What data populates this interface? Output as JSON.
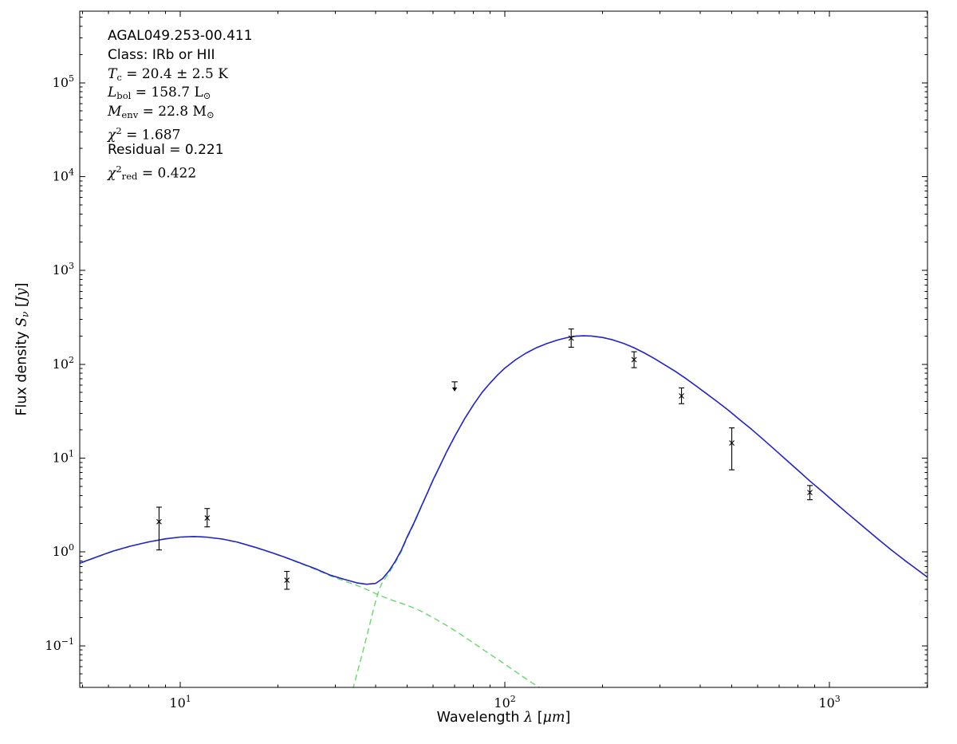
{
  "page": {
    "background": "#ffffff"
  },
  "chart_data": {
    "type": "line",
    "xscale": "log",
    "yscale": "log",
    "xlim": [
      4.9,
      2004
    ],
    "ylim": [
      0.036,
      580000
    ],
    "grid": false,
    "legend": "none",
    "tick_base": "10",
    "x_ticks": [
      {
        "value": 10,
        "exp": "1"
      },
      {
        "value": 100,
        "exp": "2"
      },
      {
        "value": 1000,
        "exp": "3"
      }
    ],
    "y_ticks": [
      {
        "value": 0.1,
        "exp": "−1"
      },
      {
        "value": 1,
        "exp": "0"
      },
      {
        "value": 10,
        "exp": "1"
      },
      {
        "value": 100,
        "exp": "2"
      },
      {
        "value": 1000,
        "exp": "3"
      },
      {
        "value": 10000,
        "exp": "4"
      },
      {
        "value": 100000,
        "exp": "5"
      }
    ],
    "xlabel_segments": [
      {
        "t": "Wavelength ",
        "f": "sans"
      },
      {
        "t": "λ",
        "f": "serif",
        "i": true
      },
      {
        "t": " [",
        "f": "sans"
      },
      {
        "t": "μm",
        "f": "serif",
        "i": true
      },
      {
        "t": "]",
        "f": "sans"
      }
    ],
    "ylabel_segments": [
      {
        "t": "Flux density ",
        "f": "sans"
      },
      {
        "t": "S",
        "f": "serif",
        "i": true
      },
      {
        "t": "ν",
        "f": "serif",
        "i": true,
        "sub": true
      },
      {
        "t": " [",
        "f": "sans"
      },
      {
        "t": "Jy",
        "f": "serif",
        "i": true
      },
      {
        "t": "]",
        "f": "sans"
      }
    ],
    "colors": {
      "model": "#2222cf",
      "components": "#66d966",
      "data": "#000000",
      "frame": "#000000"
    },
    "series": [
      {
        "name": "warm-component",
        "color": "#66d966",
        "dash": true,
        "width": 1.4,
        "points": [
          [
            4.9,
            0.755
          ],
          [
            5.5,
            0.875
          ],
          [
            6.2,
            1.015
          ],
          [
            7,
            1.145
          ],
          [
            8,
            1.275
          ],
          [
            9,
            1.375
          ],
          [
            10,
            1.435
          ],
          [
            11,
            1.455
          ],
          [
            12,
            1.435
          ],
          [
            13.5,
            1.365
          ],
          [
            15,
            1.265
          ],
          [
            17,
            1.115
          ],
          [
            19,
            0.985
          ],
          [
            21,
            0.875
          ],
          [
            23.5,
            0.75
          ],
          [
            26,
            0.655
          ],
          [
            29,
            0.555
          ],
          [
            32,
            0.49
          ],
          [
            35,
            0.44
          ],
          [
            38,
            0.39
          ],
          [
            41,
            0.345
          ],
          [
            45,
            0.305
          ],
          [
            50,
            0.27
          ],
          [
            55,
            0.235
          ],
          [
            60,
            0.2
          ],
          [
            66,
            0.165
          ],
          [
            72,
            0.137
          ],
          [
            80,
            0.107
          ],
          [
            88,
            0.0855
          ],
          [
            96,
            0.07
          ],
          [
            105,
            0.0565
          ],
          [
            114,
            0.0464
          ],
          [
            122,
            0.0396
          ],
          [
            128,
            0.0358
          ]
        ]
      },
      {
        "name": "cold-component",
        "color": "#66d966",
        "dash": true,
        "width": 1.4,
        "points": [
          [
            34,
            0.034
          ],
          [
            35,
            0.05
          ],
          [
            36,
            0.072
          ],
          [
            37,
            0.104
          ],
          [
            38,
            0.15
          ],
          [
            39,
            0.215
          ],
          [
            40,
            0.3
          ],
          [
            41,
            0.4
          ],
          [
            42,
            0.48
          ],
          [
            44,
            0.6
          ],
          [
            46,
            0.77
          ],
          [
            48,
            1.01
          ],
          [
            50,
            1.41
          ],
          [
            52.5,
            2.0
          ],
          [
            55,
            2.9
          ],
          [
            57.5,
            4.1
          ],
          [
            60,
            5.7
          ],
          [
            63,
            8.1
          ],
          [
            66,
            11.4
          ],
          [
            70,
            16.9
          ],
          [
            75,
            25.9
          ],
          [
            80,
            36.9
          ],
          [
            85,
            49.9
          ]
        ]
      },
      {
        "name": "model-total",
        "color": "#2222cf",
        "dash": false,
        "width": 1.6,
        "points": [
          [
            4.9,
            0.76
          ],
          [
            5.5,
            0.88
          ],
          [
            6.2,
            1.02
          ],
          [
            7,
            1.15
          ],
          [
            8,
            1.28
          ],
          [
            9,
            1.38
          ],
          [
            10,
            1.44
          ],
          [
            11,
            1.46
          ],
          [
            12,
            1.44
          ],
          [
            13.5,
            1.37
          ],
          [
            15,
            1.27
          ],
          [
            17,
            1.12
          ],
          [
            19,
            0.99
          ],
          [
            21,
            0.88
          ],
          [
            23.5,
            0.76
          ],
          [
            26,
            0.665
          ],
          [
            29,
            0.565
          ],
          [
            32,
            0.51
          ],
          [
            35,
            0.468
          ],
          [
            37.5,
            0.452
          ],
          [
            40,
            0.462
          ],
          [
            42,
            0.52
          ],
          [
            44,
            0.63
          ],
          [
            46,
            0.8
          ],
          [
            48,
            1.05
          ],
          [
            50,
            1.45
          ],
          [
            52.5,
            2.05
          ],
          [
            55,
            2.95
          ],
          [
            57.5,
            4.15
          ],
          [
            60,
            5.8
          ],
          [
            63,
            8.2
          ],
          [
            66,
            11.5
          ],
          [
            70,
            17
          ],
          [
            75,
            26
          ],
          [
            80,
            37
          ],
          [
            85,
            50
          ],
          [
            90,
            63
          ],
          [
            95,
            77
          ],
          [
            100,
            91
          ],
          [
            108,
            112
          ],
          [
            116,
            131
          ],
          [
            125,
            150
          ],
          [
            135,
            167
          ],
          [
            145,
            181
          ],
          [
            155,
            192
          ],
          [
            165,
            199
          ],
          [
            175,
            201
          ],
          [
            185,
            200
          ],
          [
            200,
            193
          ],
          [
            215,
            182
          ],
          [
            232,
            167
          ],
          [
            250,
            150
          ],
          [
            270,
            131
          ],
          [
            290,
            114
          ],
          [
            310,
            99
          ],
          [
            335,
            84
          ],
          [
            360,
            71
          ],
          [
            390,
            58
          ],
          [
            420,
            48
          ],
          [
            455,
            39
          ],
          [
            490,
            32
          ],
          [
            530,
            25.5
          ],
          [
            575,
            20.3
          ],
          [
            620,
            16.2
          ],
          [
            680,
            12.2
          ],
          [
            740,
            9.4
          ],
          [
            800,
            7.4
          ],
          [
            870,
            5.7
          ],
          [
            950,
            4.4
          ],
          [
            1040,
            3.35
          ],
          [
            1140,
            2.55
          ],
          [
            1250,
            1.95
          ],
          [
            1400,
            1.4
          ],
          [
            1550,
            1.05
          ],
          [
            1700,
            0.82
          ],
          [
            1850,
            0.66
          ],
          [
            2000,
            0.54
          ]
        ]
      }
    ],
    "data_points": [
      {
        "wavelength_um": 8.6,
        "flux_jy": 2.1,
        "y_lo": 1.05,
        "y_hi": 3.0
      },
      {
        "wavelength_um": 12.1,
        "flux_jy": 2.3,
        "y_lo": 1.85,
        "y_hi": 2.9
      },
      {
        "wavelength_um": 21.3,
        "flux_jy": 0.5,
        "y_lo": 0.4,
        "y_hi": 0.62
      },
      {
        "wavelength_um": 70,
        "flux_jy": 65,
        "upper_limit": true
      },
      {
        "wavelength_um": 160,
        "flux_jy": 190,
        "y_lo": 152,
        "y_hi": 238
      },
      {
        "wavelength_um": 250,
        "flux_jy": 112,
        "y_lo": 92,
        "y_hi": 136
      },
      {
        "wavelength_um": 350,
        "flux_jy": 46,
        "y_lo": 38,
        "y_hi": 56
      },
      {
        "wavelength_um": 500,
        "flux_jy": 14.5,
        "y_lo": 7.5,
        "y_hi": 21
      },
      {
        "wavelength_um": 870,
        "flux_jy": 4.3,
        "y_lo": 3.6,
        "y_hi": 5.1
      }
    ],
    "annotation": {
      "lines": [
        {
          "segments": [
            {
              "t": "AGAL049.253-00.411",
              "f": "sans"
            }
          ]
        },
        {
          "segments": [
            {
              "t": "Class: IRb or HII",
              "f": "sans"
            }
          ]
        },
        {
          "segments": [
            {
              "t": "T",
              "f": "serif",
              "i": true
            },
            {
              "t": "c",
              "f": "serif",
              "sub": true
            },
            {
              "t": " = 20.4 ± 2.5 K",
              "f": "serif"
            }
          ]
        },
        {
          "segments": [
            {
              "t": "L",
              "f": "serif",
              "i": true
            },
            {
              "t": "bol",
              "f": "serif",
              "sub": true
            },
            {
              "t": " = 158.7 L",
              "f": "serif"
            },
            {
              "t": "⊙",
              "f": "serif",
              "sub": true
            }
          ]
        },
        {
          "segments": [
            {
              "t": "M",
              "f": "serif",
              "i": true
            },
            {
              "t": "env",
              "f": "serif",
              "sub": true
            },
            {
              "t": " = 22.8 M",
              "f": "serif"
            },
            {
              "t": "⊙",
              "f": "serif",
              "sub": true
            }
          ]
        },
        {
          "segments": [
            {
              "t": "χ",
              "f": "serif",
              "i": true
            },
            {
              "t": "2",
              "f": "serif",
              "sup": true
            },
            {
              "t": " = 1.687",
              "f": "serif"
            }
          ]
        },
        {
          "segments": [
            {
              "t": "Residual = 0.221",
              "f": "sans"
            }
          ]
        },
        {
          "segments": [
            {
              "t": "χ",
              "f": "serif",
              "i": true
            },
            {
              "t": "2",
              "f": "serif",
              "sup": true
            },
            {
              "t": "red",
              "f": "serif",
              "sub": true
            },
            {
              "t": " = 0.422",
              "f": "serif"
            }
          ]
        }
      ]
    }
  }
}
